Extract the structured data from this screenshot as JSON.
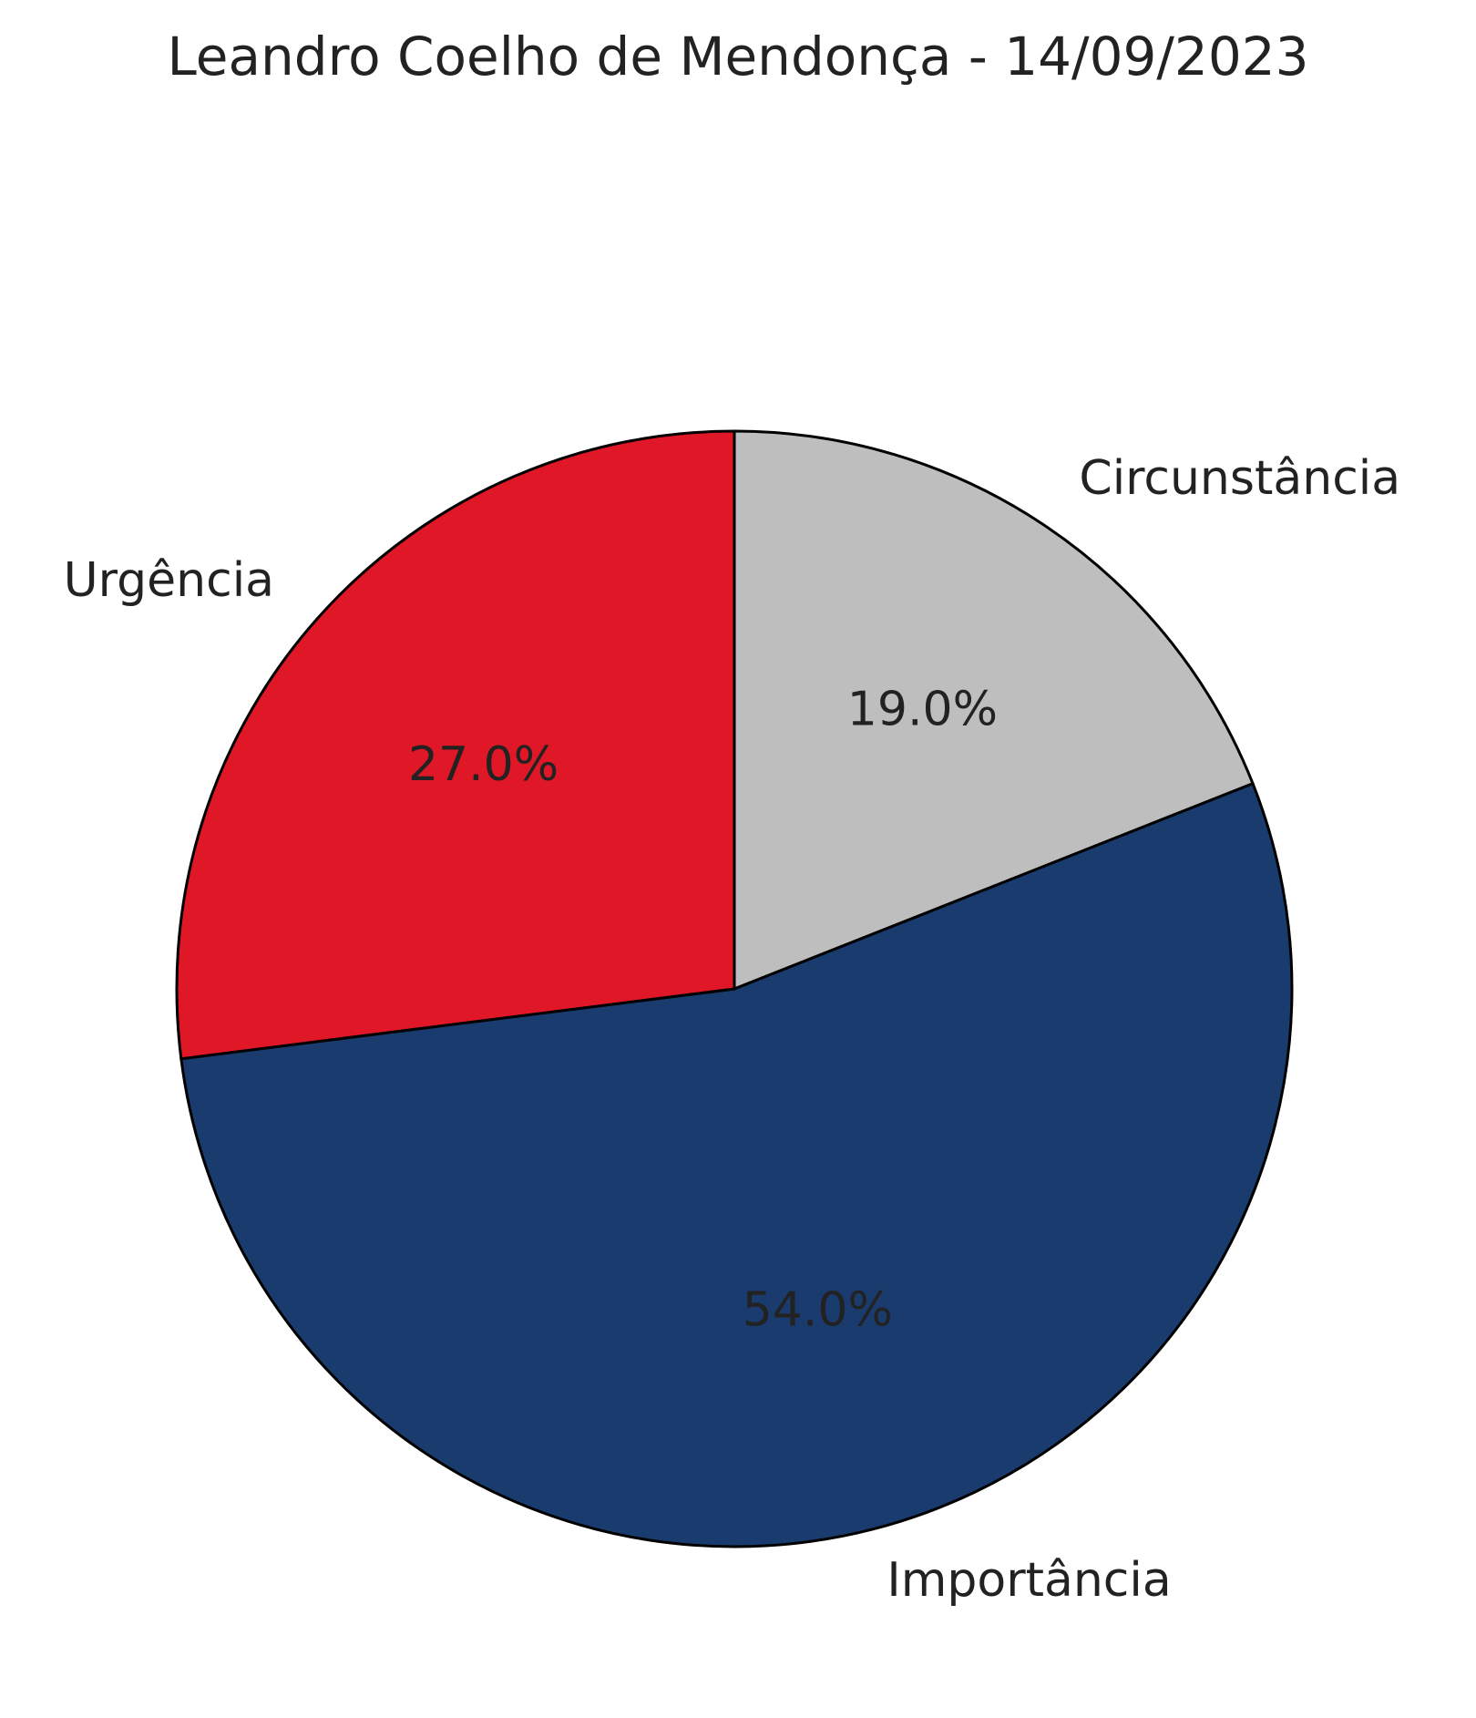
{
  "chart_data": {
    "type": "pie",
    "title": "Leandro Coelho de Mendonça - 14/09/2023",
    "start": "top",
    "direction": "clockwise",
    "slices": [
      {
        "label": "Circunstância",
        "value": 19.0,
        "pct_label": "19.0%",
        "color": "#bdbebd"
      },
      {
        "label": "Importância",
        "value": 54.0,
        "pct_label": "54.0%",
        "color": "#1a3b6e"
      },
      {
        "label": "Urgência",
        "value": 27.0,
        "pct_label": "27.0%",
        "color": "#e01726"
      }
    ]
  }
}
